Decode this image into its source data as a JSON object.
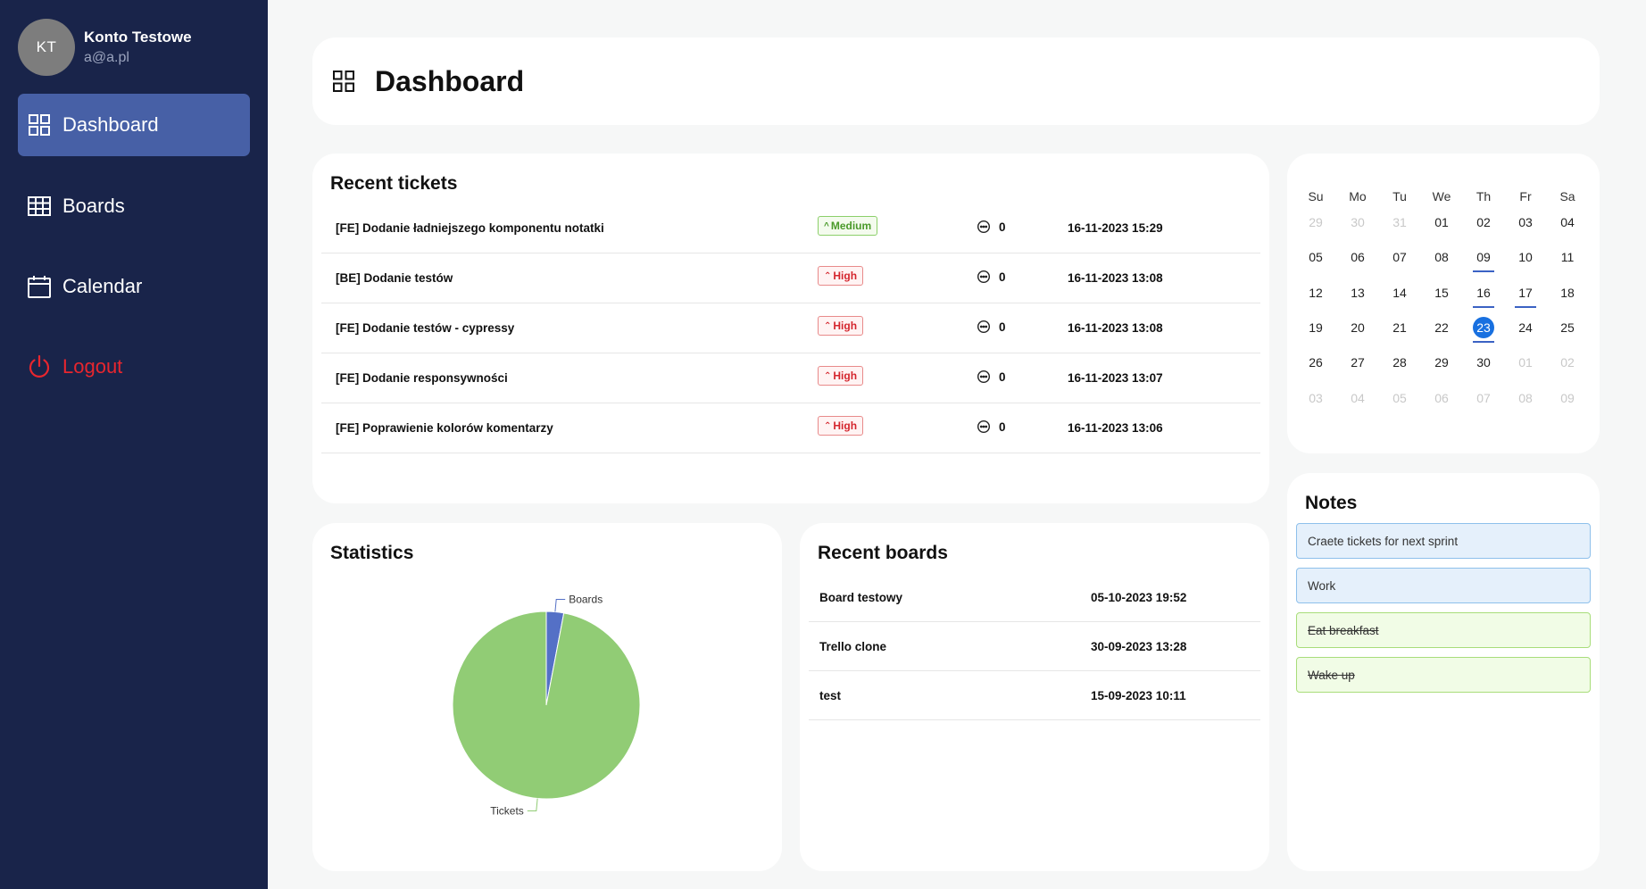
{
  "profile": {
    "initials": "KT",
    "name": "Konto  Testowe",
    "email": "a@a.pl"
  },
  "nav": {
    "dashboard": "Dashboard",
    "boards": "Boards",
    "calendar": "Calendar",
    "logout": "Logout"
  },
  "header": {
    "title": "Dashboard"
  },
  "recent_tickets": {
    "title": "Recent tickets",
    "rows": [
      {
        "title": "[FE] Dodanie ładniejszego komponentu notatki",
        "priority": "Medium",
        "priority_arrow": "^",
        "comments": "0",
        "date": "16-11-2023 15:29"
      },
      {
        "title": "[BE] Dodanie testów",
        "priority": "High",
        "priority_arrow": "⌃",
        "comments": "0",
        "date": "16-11-2023 13:08"
      },
      {
        "title": "[FE] Dodanie testów - cypressy",
        "priority": "High",
        "priority_arrow": "⌃",
        "comments": "0",
        "date": "16-11-2023 13:08"
      },
      {
        "title": "[FE] Dodanie responsywności",
        "priority": "High",
        "priority_arrow": "⌃",
        "comments": "0",
        "date": "16-11-2023 13:07"
      },
      {
        "title": "[FE] Poprawienie kolorów komentarzy",
        "priority": "High",
        "priority_arrow": "⌃",
        "comments": "0",
        "date": "16-11-2023 13:06"
      }
    ]
  },
  "statistics": {
    "title": "Statistics"
  },
  "chart_data": {
    "type": "pie",
    "categories": [
      "Boards",
      "Tickets"
    ],
    "values": [
      3,
      97
    ],
    "colors": [
      "#5470c6",
      "#91cc75"
    ]
  },
  "recent_boards": {
    "title": "Recent boards",
    "rows": [
      {
        "name": "Board testowy",
        "date": "05-10-2023 19:52"
      },
      {
        "name": "Trello clone",
        "date": "30-09-2023 13:28"
      },
      {
        "name": "test",
        "date": "15-09-2023 10:11"
      }
    ]
  },
  "calendar": {
    "weekdays": [
      "Su",
      "Mo",
      "Tu",
      "We",
      "Th",
      "Fr",
      "Sa"
    ],
    "weeks": [
      [
        "29",
        "30",
        "31",
        "01",
        "02",
        "03",
        "04"
      ],
      [
        "05",
        "06",
        "07",
        "08",
        "09",
        "10",
        "11"
      ],
      [
        "12",
        "13",
        "14",
        "15",
        "16",
        "17",
        "18"
      ],
      [
        "19",
        "20",
        "21",
        "22",
        "23",
        "24",
        "25"
      ],
      [
        "26",
        "27",
        "28",
        "29",
        "30",
        "01",
        "02"
      ],
      [
        "03",
        "04",
        "05",
        "06",
        "07",
        "08",
        "09"
      ]
    ],
    "leading_muted": 3,
    "trailing_muted": 9,
    "marked_days": [
      "09",
      "16",
      "17"
    ],
    "today": "23"
  },
  "notes": {
    "title": "Notes",
    "items": [
      {
        "text": "Craete tickets for next sprint",
        "color": "blue",
        "done": false
      },
      {
        "text": "Work",
        "color": "blue",
        "done": false
      },
      {
        "text": "Eat breakfast",
        "color": "green",
        "done": true
      },
      {
        "text": "Wake up",
        "color": "green",
        "done": true
      }
    ]
  }
}
